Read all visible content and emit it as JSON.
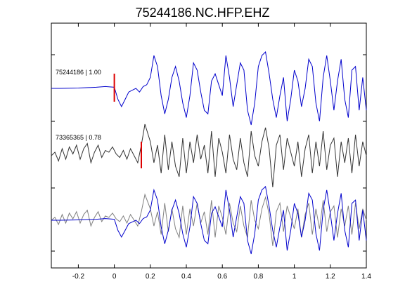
{
  "chart_data": {
    "type": "line",
    "title": "75244186.NC.HFP.EHZ",
    "xlabel": "",
    "ylabel": "",
    "xlim": [
      -0.35,
      1.4
    ],
    "x_ticks": [
      -0.2,
      0,
      0.2,
      0.4,
      0.6,
      0.8,
      1,
      1.2,
      1.4
    ],
    "x_tick_labels": [
      "-0.2",
      "0",
      "0.2",
      "0.4",
      "0.6",
      "0.8",
      "1",
      "1.2",
      "1.4"
    ],
    "grid": false,
    "colors": {
      "template": "#0000cc",
      "match": "#333333",
      "overlay_match": "#808080",
      "pick": "#dd0000",
      "axes": "#000000"
    },
    "traces": [
      {
        "label": "75244186 | 1.00",
        "event_id": "75244186",
        "correlation": 1.0,
        "color": "#0000cc",
        "pick_time": 0.0,
        "x": [
          -0.35,
          -0.3,
          -0.2,
          -0.1,
          -0.05,
          0.0,
          0.02,
          0.04,
          0.06,
          0.08,
          0.1,
          0.12,
          0.14,
          0.16,
          0.18,
          0.2,
          0.22,
          0.24,
          0.26,
          0.28,
          0.3,
          0.32,
          0.34,
          0.36,
          0.38,
          0.4,
          0.42,
          0.44,
          0.46,
          0.48,
          0.5,
          0.52,
          0.54,
          0.56,
          0.58,
          0.6,
          0.62,
          0.64,
          0.66,
          0.68,
          0.7,
          0.72,
          0.74,
          0.76,
          0.78,
          0.8,
          0.82,
          0.84,
          0.86,
          0.88,
          0.9,
          0.92,
          0.94,
          0.96,
          0.98,
          1.0,
          1.02,
          1.04,
          1.06,
          1.08,
          1.1,
          1.12,
          1.14,
          1.16,
          1.18,
          1.2,
          1.22,
          1.24,
          1.26,
          1.28,
          1.3,
          1.32,
          1.34,
          1.36,
          1.38,
          1.4
        ],
        "y": [
          0.0,
          0.0,
          0.01,
          0.03,
          0.05,
          0.03,
          -0.3,
          -0.5,
          -0.3,
          -0.1,
          -0.05,
          0.0,
          -0.1,
          0.05,
          0.1,
          0.3,
          0.9,
          0.6,
          -0.2,
          -0.7,
          -0.3,
          0.3,
          0.6,
          0.2,
          -0.4,
          -0.8,
          -0.2,
          0.7,
          0.5,
          -0.1,
          -0.6,
          -0.7,
          0.2,
          0.4,
          0.1,
          -0.2,
          0.9,
          0.3,
          -0.5,
          0.1,
          0.7,
          0.5,
          -0.6,
          -1.0,
          -0.4,
          0.6,
          0.9,
          1.0,
          0.4,
          -0.3,
          -0.8,
          -0.2,
          0.3,
          -0.9,
          -0.3,
          0.5,
          0.2,
          -0.5,
          0.0,
          0.8,
          0.6,
          -0.4,
          -0.9,
          0.3,
          0.9,
          0.2,
          -0.6,
          0.2,
          0.8,
          -0.3,
          -0.8,
          0.5,
          0.6,
          -0.6,
          0.3,
          -0.6
        ]
      },
      {
        "label": "73365365 | 0.78",
        "event_id": "73365365",
        "correlation": 0.78,
        "color": "#333333",
        "pick_time": 0.15,
        "x": [
          -0.35,
          -0.33,
          -0.31,
          -0.29,
          -0.27,
          -0.25,
          -0.23,
          -0.21,
          -0.19,
          -0.17,
          -0.15,
          -0.13,
          -0.11,
          -0.09,
          -0.07,
          -0.05,
          -0.03,
          -0.01,
          0.01,
          0.03,
          0.05,
          0.07,
          0.09,
          0.11,
          0.13,
          0.15,
          0.17,
          0.2,
          0.22,
          0.24,
          0.26,
          0.28,
          0.3,
          0.32,
          0.34,
          0.36,
          0.38,
          0.4,
          0.42,
          0.44,
          0.46,
          0.48,
          0.5,
          0.52,
          0.54,
          0.56,
          0.58,
          0.6,
          0.62,
          0.64,
          0.66,
          0.68,
          0.7,
          0.72,
          0.74,
          0.76,
          0.78,
          0.8,
          0.82,
          0.84,
          0.86,
          0.88,
          0.9,
          0.92,
          0.94,
          0.96,
          0.98,
          1.0,
          1.02,
          1.04,
          1.06,
          1.08,
          1.1,
          1.12,
          1.14,
          1.16,
          1.18,
          1.2,
          1.22,
          1.24,
          1.26,
          1.28,
          1.3,
          1.32,
          1.34,
          1.36,
          1.38,
          1.4
        ],
        "y": [
          0.0,
          0.1,
          -0.15,
          0.2,
          -0.1,
          0.25,
          0.05,
          0.3,
          -0.1,
          0.2,
          0.35,
          -0.2,
          0.1,
          0.3,
          -0.05,
          0.15,
          0.1,
          0.25,
          0.05,
          -0.05,
          0.15,
          -0.1,
          0.2,
          0.0,
          -0.2,
          0.3,
          0.9,
          0.4,
          -0.2,
          0.3,
          -0.5,
          0.6,
          -0.4,
          0.4,
          -0.3,
          -0.6,
          0.5,
          -0.5,
          0.4,
          -0.2,
          0.6,
          -0.1,
          0.3,
          -0.5,
          0.7,
          -0.6,
          0.5,
          0.1,
          -0.5,
          0.6,
          -0.1,
          -0.4,
          0.5,
          -0.2,
          -0.6,
          0.7,
          0.0,
          -0.3,
          0.4,
          0.8,
          0.2,
          -0.9,
          0.3,
          0.6,
          -0.4,
          0.5,
          0.1,
          -0.3,
          0.4,
          -0.6,
          0.2,
          0.6,
          -0.5,
          0.4,
          -0.3,
          0.7,
          -0.4,
          0.3,
          0.5,
          -0.6,
          0.4,
          -0.2,
          0.5,
          -0.5,
          0.6,
          -0.3,
          0.4,
          0.0
        ]
      }
    ],
    "overlay": {
      "description_series": [
        "75244186 | 1.00",
        "73365365 | 0.78"
      ],
      "colors": [
        "#0000cc",
        "#808080"
      ]
    }
  }
}
